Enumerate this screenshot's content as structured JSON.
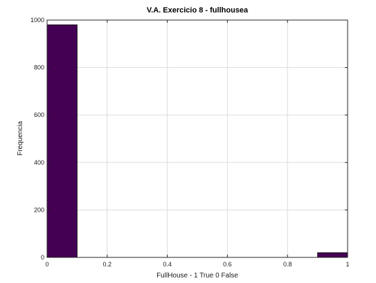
{
  "chart_data": {
    "type": "bar",
    "title": "V.A. Exercicio 8 - fullhousea",
    "xlabel": "FullHouse - 1 True 0 False",
    "ylabel": "Frequencia",
    "xlim": [
      0,
      1
    ],
    "ylim": [
      0,
      1000
    ],
    "xticks": [
      "0",
      "0.2",
      "0.4",
      "0.6",
      "0.8",
      "1"
    ],
    "yticks": [
      "0",
      "200",
      "400",
      "600",
      "800",
      "1000"
    ],
    "grid": true,
    "bar_color": "#440154",
    "bins": [
      {
        "x0": 0.0,
        "x1": 0.1,
        "value": 980
      },
      {
        "x0": 0.1,
        "x1": 0.2,
        "value": 0
      },
      {
        "x0": 0.2,
        "x1": 0.3,
        "value": 0
      },
      {
        "x0": 0.3,
        "x1": 0.4,
        "value": 0
      },
      {
        "x0": 0.4,
        "x1": 0.5,
        "value": 0
      },
      {
        "x0": 0.5,
        "x1": 0.6,
        "value": 0
      },
      {
        "x0": 0.6,
        "x1": 0.7,
        "value": 0
      },
      {
        "x0": 0.7,
        "x1": 0.8,
        "value": 0
      },
      {
        "x0": 0.8,
        "x1": 0.9,
        "value": 0
      },
      {
        "x0": 0.9,
        "x1": 1.0,
        "value": 20
      }
    ]
  }
}
